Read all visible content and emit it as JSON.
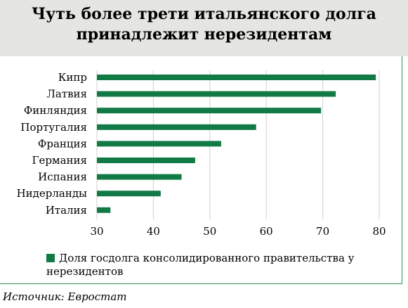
{
  "header": {
    "title_line1": "Чуть более трети итальянского долга",
    "title_line2": "принадлежит нерезидентам"
  },
  "chart_data": {
    "type": "bar",
    "orientation": "horizontal",
    "categories": [
      "Кипр",
      "Латвия",
      "Финляндия",
      "Португалия",
      "Франция",
      "Германия",
      "Испания",
      "Нидерланды",
      "Италия"
    ],
    "series": [
      {
        "name": "Доля госдолга консолидированного  правительства у нерезидентов",
        "values": [
          79.4,
          72.3,
          69.7,
          58.2,
          52.0,
          47.4,
          45.0,
          41.3,
          32.4
        ],
        "color": "#117a45"
      }
    ],
    "xlim": [
      30,
      80
    ],
    "xticks": [
      "30",
      "40",
      "50",
      "60",
      "70",
      "80"
    ],
    "grid": "vertical",
    "legend_position": "bottom"
  },
  "legend": {
    "label": "Доля госдолга консолидированного  правительства у нерезидентов"
  },
  "source": {
    "text": "Источник: Евростат"
  }
}
